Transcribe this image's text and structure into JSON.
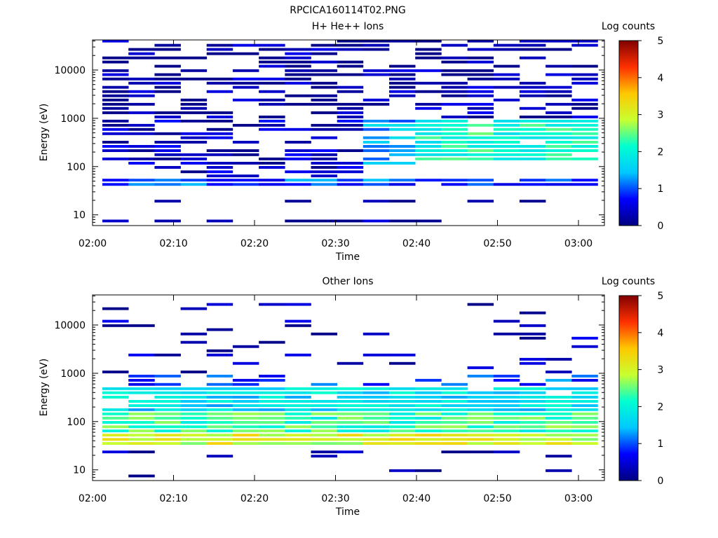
{
  "figure": {
    "title": "RPCICA160114T02.PNG"
  },
  "colorscale": [
    "#000080",
    "#0000ff",
    "#00c8ff",
    "#00ffd0",
    "#c8ff30",
    "#ffc800",
    "#ff3000",
    "#800000"
  ],
  "chart_data": [
    {
      "type": "heatmap",
      "title": "H+ He++ Ions",
      "xlabel": "Time",
      "ylabel": "Energy (eV)",
      "x_ticks": [
        "02:00",
        "02:10",
        "02:20",
        "02:30",
        "02:40",
        "02:50",
        "03:00"
      ],
      "y_scale": "log",
      "y_ticks": [
        "10",
        "100",
        "1000",
        "10000"
      ],
      "ylim": [
        6,
        42000
      ],
      "colorbar": {
        "label": "Log counts",
        "range": [
          0,
          5
        ],
        "ticks": [
          "0",
          "1",
          "2",
          "3",
          "4",
          "5"
        ]
      },
      "time_start_min": 0,
      "time_step_min": 3.2,
      "n_time_bins": 19,
      "energy_levels_ev": [
        7,
        9,
        18,
        22,
        27,
        33,
        40,
        49,
        60,
        73,
        90,
        110,
        135,
        165,
        200,
        245,
        300,
        370,
        450,
        550,
        670,
        820,
        1000,
        1220,
        1500,
        1830,
        2240,
        2740,
        3350,
        4100,
        5000,
        6100,
        7500,
        9100,
        11200,
        13700,
        16700,
        20400,
        25000,
        30500,
        37300
      ],
      "bands": [
        {
          "e_min": 35,
          "e_max": 60,
          "t_start": 0,
          "t_end": 61,
          "log_counts": 1.0,
          "fill": 0.9
        },
        {
          "e_min": 60,
          "e_max": 1000,
          "t_start": 0,
          "t_end": 29,
          "log_counts": 0.35,
          "fill": 0.55
        },
        {
          "e_min": 1000,
          "e_max": 40000,
          "t_start": 0,
          "t_end": 61,
          "log_counts": 0.2,
          "fill": 0.5
        },
        {
          "e_min": 100,
          "e_max": 1000,
          "t_start": 29,
          "t_end": 36,
          "log_counts": 1.4,
          "fill": 0.7
        },
        {
          "e_min": 120,
          "e_max": 1000,
          "t_start": 36,
          "t_end": 61,
          "log_counts": 2.1,
          "fill": 0.95
        },
        {
          "e_min": 400,
          "e_max": 900,
          "t_start": 42,
          "t_end": 48,
          "log_counts": 2.7,
          "fill": 0.9
        },
        {
          "e_min": 14,
          "e_max": 20,
          "t_start": 0,
          "t_end": 61,
          "log_counts": 0.1,
          "fill": 0.25
        },
        {
          "e_min": 6,
          "e_max": 9,
          "t_start": 0,
          "t_end": 61,
          "log_counts": 0.1,
          "fill": 0.25
        }
      ]
    },
    {
      "type": "heatmap",
      "title": "Other Ions",
      "xlabel": "Time",
      "ylabel": "Energy (eV)",
      "x_ticks": [
        "02:00",
        "02:10",
        "02:20",
        "02:30",
        "02:40",
        "02:50",
        "03:00"
      ],
      "y_scale": "log",
      "y_ticks": [
        "10",
        "100",
        "1000",
        "10000"
      ],
      "ylim": [
        6,
        42000
      ],
      "colorbar": {
        "label": "Log counts",
        "range": [
          0,
          5
        ],
        "ticks": [
          "0",
          "1",
          "2",
          "3",
          "4",
          "5"
        ]
      },
      "time_start_min": 0,
      "time_step_min": 3.2,
      "n_time_bins": 19,
      "energy_levels_ev": [
        7,
        9,
        18,
        22,
        27,
        33,
        40,
        49,
        60,
        73,
        90,
        110,
        135,
        165,
        200,
        245,
        300,
        370,
        450,
        550,
        670,
        820,
        1000,
        1220,
        1500,
        1830,
        2240,
        2740,
        3350,
        4100,
        5000,
        6100,
        7500,
        9100,
        11200,
        13700,
        16700,
        20400,
        25000,
        30500,
        37300
      ],
      "bands": [
        {
          "e_min": 28,
          "e_max": 33,
          "t_start": 0,
          "t_end": 61,
          "log_counts": 1.6,
          "fill": 1.0
        },
        {
          "e_min": 33,
          "e_max": 60,
          "t_start": 0,
          "t_end": 61,
          "log_counts": 3.0,
          "fill": 1.0
        },
        {
          "e_min": 60,
          "e_max": 160,
          "t_start": 0,
          "t_end": 61,
          "log_counts": 2.3,
          "fill": 1.0
        },
        {
          "e_min": 160,
          "e_max": 550,
          "t_start": 0,
          "t_end": 61,
          "log_counts": 1.7,
          "fill": 0.95
        },
        {
          "e_min": 550,
          "e_max": 1000,
          "t_start": 0,
          "t_end": 61,
          "log_counts": 0.9,
          "fill": 0.6
        },
        {
          "e_min": 1000,
          "e_max": 30000,
          "t_start": 0,
          "t_end": 61,
          "log_counts": 0.25,
          "fill": 0.12
        },
        {
          "e_min": 20,
          "e_max": 25,
          "t_start": 0,
          "t_end": 61,
          "log_counts": 0.15,
          "fill": 0.35
        },
        {
          "e_min": 6,
          "e_max": 20,
          "t_start": 0,
          "t_end": 61,
          "log_counts": 0.15,
          "fill": 0.15
        }
      ]
    }
  ]
}
